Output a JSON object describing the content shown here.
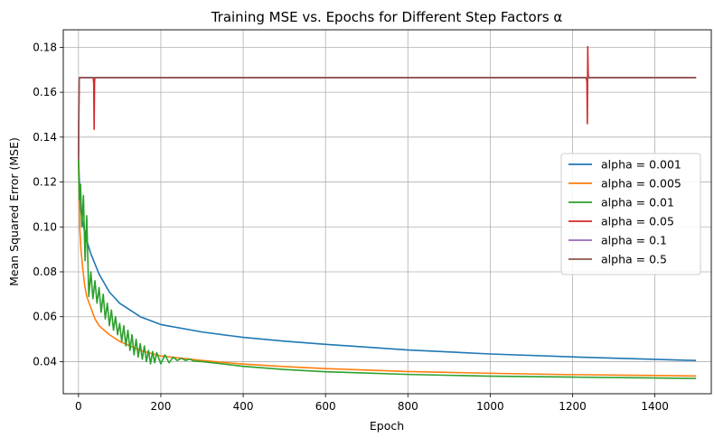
{
  "chart_data": {
    "type": "line",
    "title": "Training MSE vs. Epochs for Different Step Factors α",
    "xlabel": "Epoch",
    "ylabel": "Mean Squared Error (MSE)",
    "xlim": [
      -37,
      1537
    ],
    "ylim": [
      0.0257,
      0.1878
    ],
    "xticks": [
      0,
      200,
      400,
      600,
      800,
      1000,
      1200,
      1400
    ],
    "xtick_labels": [
      "0",
      "200",
      "400",
      "600",
      "800",
      "1000",
      "1200",
      "1400"
    ],
    "yticks": [
      0.04,
      0.06,
      0.08,
      0.1,
      0.12,
      0.14,
      0.16,
      0.18
    ],
    "ytick_labels": [
      "0.04",
      "0.06",
      "0.08",
      "0.10",
      "0.12",
      "0.14",
      "0.16",
      "0.18"
    ],
    "grid": true,
    "legend_position": "center-right",
    "series": [
      {
        "name": "alpha = 0.001",
        "color": "#1f77b4",
        "x": [
          0,
          5,
          10,
          20,
          30,
          50,
          75,
          100,
          150,
          200,
          300,
          400,
          500,
          600,
          800,
          1000,
          1200,
          1400,
          1500
        ],
        "y": [
          0.13,
          0.108,
          0.102,
          0.094,
          0.088,
          0.079,
          0.071,
          0.066,
          0.06,
          0.0565,
          0.0532,
          0.0508,
          0.0491,
          0.0477,
          0.0452,
          0.0434,
          0.0421,
          0.041,
          0.0405
        ]
      },
      {
        "name": "alpha = 0.005",
        "color": "#ff7f0e",
        "x": [
          0,
          3,
          6,
          10,
          15,
          20,
          30,
          40,
          50,
          75,
          100,
          150,
          200,
          300,
          400,
          500,
          600,
          800,
          1000,
          1200,
          1400,
          1500
        ],
        "y": [
          0.13,
          0.1,
          0.09,
          0.082,
          0.074,
          0.069,
          0.064,
          0.059,
          0.056,
          0.052,
          0.049,
          0.045,
          0.0425,
          0.0405,
          0.0389,
          0.0378,
          0.0369,
          0.0356,
          0.0348,
          0.0342,
          0.0338,
          0.0336
        ]
      },
      {
        "name": "alpha = 0.01",
        "color": "#2ca02c",
        "x": [
          0,
          2,
          5,
          8,
          12,
          16,
          20,
          25,
          30,
          35,
          40,
          45,
          50,
          55,
          60,
          65,
          70,
          75,
          80,
          85,
          90,
          95,
          100,
          105,
          110,
          115,
          120,
          125,
          130,
          135,
          140,
          145,
          150,
          155,
          160,
          165,
          170,
          175,
          180,
          185,
          190,
          200,
          210,
          220,
          230,
          240,
          250,
          260,
          270,
          280,
          300,
          350,
          400,
          500,
          600,
          800,
          1000,
          1200,
          1400,
          1500
        ],
        "y": [
          0.13,
          0.112,
          0.119,
          0.1,
          0.114,
          0.085,
          0.105,
          0.069,
          0.08,
          0.068,
          0.076,
          0.066,
          0.073,
          0.062,
          0.07,
          0.059,
          0.066,
          0.056,
          0.063,
          0.054,
          0.06,
          0.052,
          0.057,
          0.049,
          0.056,
          0.047,
          0.054,
          0.045,
          0.052,
          0.043,
          0.05,
          0.042,
          0.048,
          0.041,
          0.047,
          0.04,
          0.045,
          0.039,
          0.0445,
          0.0395,
          0.044,
          0.039,
          0.043,
          0.0395,
          0.042,
          0.0405,
          0.0415,
          0.0405,
          0.0412,
          0.0402,
          0.04,
          0.039,
          0.0379,
          0.0365,
          0.0355,
          0.0343,
          0.0335,
          0.0331,
          0.0327,
          0.0325
        ]
      },
      {
        "name": "alpha = 0.05",
        "color": "#d62728",
        "x": [
          0,
          1,
          2,
          3,
          35,
          36,
          37,
          38,
          39,
          40,
          1230,
          1234,
          1235,
          1236,
          1237,
          1238,
          1239,
          1240,
          1500
        ],
        "y": [
          0.13,
          0.15,
          0.1663,
          0.1665,
          0.1665,
          0.166,
          0.164,
          0.1435,
          0.165,
          0.1665,
          0.1665,
          0.166,
          0.1645,
          0.146,
          0.1803,
          0.168,
          0.1665,
          0.1665,
          0.1665
        ]
      },
      {
        "name": "alpha = 0.1",
        "color": "#9467bd",
        "x": [
          0,
          1,
          2,
          1500
        ],
        "y": [
          0.13,
          0.16,
          0.1665,
          0.1665
        ]
      },
      {
        "name": "alpha = 0.5",
        "color": "#8c564b",
        "x": [
          0,
          1,
          2,
          1500
        ],
        "y": [
          0.13,
          0.162,
          0.1665,
          0.1665
        ]
      }
    ]
  }
}
